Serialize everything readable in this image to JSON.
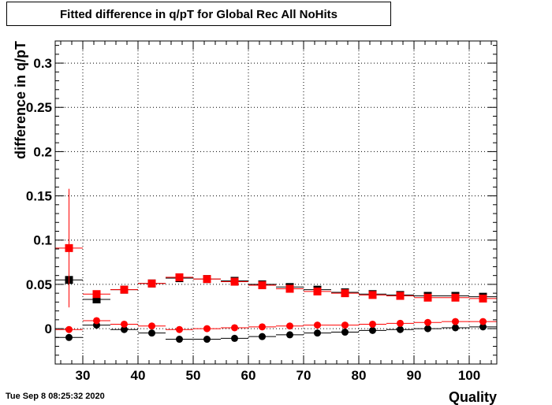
{
  "header": {
    "title": "Fitted difference in q/pT for Global Rec All NoHits"
  },
  "footer": {
    "timestamp": "Tue Sep  8 08:25:32 2020"
  },
  "chart_data": {
    "type": "scatter",
    "title": "Fitted difference in q/pT for Global Rec All NoHits",
    "xlabel": "Quality",
    "ylabel": "difference in q/pT",
    "xlim": [
      25,
      105
    ],
    "ylim": [
      -0.04,
      0.325
    ],
    "grid": true,
    "x_ticks": [
      30,
      40,
      50,
      60,
      70,
      80,
      90,
      100
    ],
    "x_tick_labels": [
      "30",
      "40",
      "50",
      "60",
      "70",
      "80",
      "90",
      "100"
    ],
    "y_ticks": [
      0,
      0.05,
      0.1,
      0.15,
      0.2,
      0.25,
      0.3
    ],
    "y_tick_labels": [
      "0",
      "0.05",
      "0.1",
      "0.15",
      "0.2",
      "0.25",
      "0.3"
    ],
    "series": [
      {
        "marker": "square",
        "color": "#000000",
        "x": [
          27.5,
          32.5,
          37.5,
          42.5,
          47.5,
          52.5,
          57.5,
          62.5,
          67.5,
          72.5,
          77.5,
          82.5,
          87.5,
          92.5,
          97.5,
          102.5
        ],
        "y": [
          0.055,
          0.033,
          0.044,
          0.051,
          0.057,
          0.056,
          0.054,
          0.05,
          0.047,
          0.044,
          0.041,
          0.039,
          0.038,
          0.037,
          0.037,
          0.036
        ],
        "xerr": 2.5,
        "yerr": [
          0.0,
          0.002,
          0.001,
          0.001,
          0.001,
          0.001,
          0.001,
          0.001,
          0.001,
          0.001,
          0.001,
          0.001,
          0.001,
          0.001,
          0.001,
          0.001
        ]
      },
      {
        "marker": "square",
        "color": "#ff0000",
        "x": [
          27.5,
          32.5,
          37.5,
          42.5,
          47.5,
          52.5,
          57.5,
          62.5,
          67.5,
          72.5,
          77.5,
          82.5,
          87.5,
          92.5,
          97.5,
          102.5
        ],
        "y": [
          0.091,
          0.039,
          0.044,
          0.051,
          0.058,
          0.056,
          0.053,
          0.049,
          0.045,
          0.042,
          0.04,
          0.038,
          0.037,
          0.035,
          0.035,
          0.034
        ],
        "xerr": 2.5,
        "yerr": [
          0.067,
          0.002,
          0.001,
          0.001,
          0.001,
          0.001,
          0.001,
          0.001,
          0.001,
          0.001,
          0.001,
          0.001,
          0.001,
          0.001,
          0.001,
          0.001
        ]
      },
      {
        "marker": "circle",
        "color": "#000000",
        "x": [
          27.5,
          32.5,
          37.5,
          42.5,
          47.5,
          52.5,
          57.5,
          62.5,
          67.5,
          72.5,
          77.5,
          82.5,
          87.5,
          92.5,
          97.5,
          102.5
        ],
        "y": [
          -0.01,
          0.004,
          -0.001,
          -0.005,
          -0.012,
          -0.012,
          -0.011,
          -0.009,
          -0.007,
          -0.005,
          -0.004,
          -0.002,
          -0.001,
          0.0,
          0.001,
          0.002
        ],
        "xerr": 2.5,
        "yerr": [
          0.001,
          0.001,
          0.001,
          0.001,
          0.001,
          0.001,
          0.001,
          0.001,
          0.001,
          0.001,
          0.001,
          0.001,
          0.001,
          0.001,
          0.001,
          0.001
        ]
      },
      {
        "marker": "circle",
        "color": "#ff0000",
        "x": [
          27.5,
          32.5,
          37.5,
          42.5,
          47.5,
          52.5,
          57.5,
          62.5,
          67.5,
          72.5,
          77.5,
          82.5,
          87.5,
          92.5,
          97.5,
          102.5
        ],
        "y": [
          -0.001,
          0.009,
          0.005,
          0.003,
          -0.001,
          0.0,
          0.001,
          0.002,
          0.003,
          0.004,
          0.004,
          0.005,
          0.006,
          0.007,
          0.008,
          0.008
        ],
        "xerr": 2.5,
        "yerr": [
          0.001,
          0.001,
          0.001,
          0.001,
          0.001,
          0.001,
          0.001,
          0.001,
          0.001,
          0.001,
          0.001,
          0.001,
          0.001,
          0.001,
          0.001,
          0.001
        ]
      }
    ]
  }
}
